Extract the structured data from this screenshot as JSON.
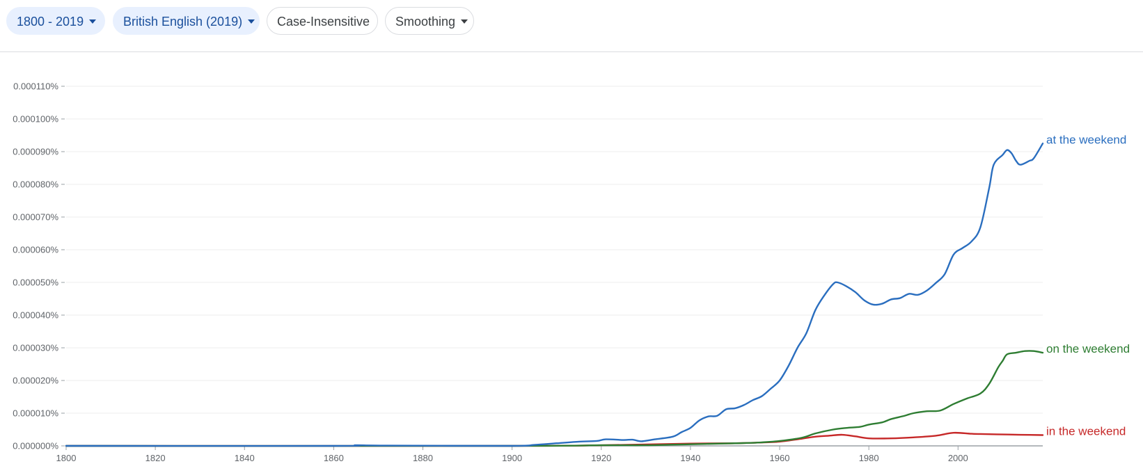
{
  "controls": {
    "year_range": "1800 - 2019",
    "corpus": "British English (2019)",
    "case": "Case-Insensitive",
    "smoothing": "Smoothing"
  },
  "colors": {
    "at": "#2a6ebf",
    "on": "#2e7d32",
    "in": "#c62828",
    "grid": "#eeeeee",
    "axis": "#9aa0a6"
  },
  "chart_data": {
    "type": "line",
    "xlim": [
      1800,
      2019
    ],
    "ylim": [
      0,
      0.00011
    ],
    "x_ticks": [
      1800,
      1820,
      1840,
      1860,
      1880,
      1900,
      1920,
      1940,
      1960,
      1980,
      2000
    ],
    "y_ticks": [
      0,
      1e-05,
      2e-05,
      3e-05,
      4e-05,
      5e-05,
      6e-05,
      7e-05,
      8e-05,
      9e-05,
      0.0001,
      0.00011
    ],
    "y_tick_labels": [
      "0.000000%",
      "0.000010%",
      "0.000020%",
      "0.000030%",
      "0.000040%",
      "0.000050%",
      "0.000060%",
      "0.000070%",
      "0.000080%",
      "0.000090%",
      "0.000100%",
      "0.000110%"
    ],
    "grid": true,
    "legend": "inline-right",
    "series": [
      {
        "name": "at the weekend",
        "points": [
          [
            1800,
            0
          ],
          [
            1860,
            0
          ],
          [
            1865,
            2e-07
          ],
          [
            1872,
            1e-07
          ],
          [
            1900,
            0
          ],
          [
            1905,
            3e-07
          ],
          [
            1910,
            8e-07
          ],
          [
            1915,
            1.3e-06
          ],
          [
            1919,
            1.5e-06
          ],
          [
            1921,
            2e-06
          ],
          [
            1925,
            1.8e-06
          ],
          [
            1927,
            1.9e-06
          ],
          [
            1929,
            1.4e-06
          ],
          [
            1932,
            2e-06
          ],
          [
            1936,
            2.8e-06
          ],
          [
            1938,
            4.2e-06
          ],
          [
            1940,
            5.5e-06
          ],
          [
            1942,
            7.8e-06
          ],
          [
            1944,
            9e-06
          ],
          [
            1946,
            9.2e-06
          ],
          [
            1948,
            1.12e-05
          ],
          [
            1950,
            1.15e-05
          ],
          [
            1952,
            1.25e-05
          ],
          [
            1954,
            1.4e-05
          ],
          [
            1956,
            1.52e-05
          ],
          [
            1958,
            1.75e-05
          ],
          [
            1960,
            2e-05
          ],
          [
            1962,
            2.45e-05
          ],
          [
            1964,
            3e-05
          ],
          [
            1966,
            3.45e-05
          ],
          [
            1968,
            4.15e-05
          ],
          [
            1970,
            4.6e-05
          ],
          [
            1972,
            4.95e-05
          ],
          [
            1973,
            5e-05
          ],
          [
            1975,
            4.88e-05
          ],
          [
            1977,
            4.7e-05
          ],
          [
            1979,
            4.45e-05
          ],
          [
            1981,
            4.32e-05
          ],
          [
            1983,
            4.35e-05
          ],
          [
            1985,
            4.48e-05
          ],
          [
            1987,
            4.52e-05
          ],
          [
            1989,
            4.65e-05
          ],
          [
            1991,
            4.62e-05
          ],
          [
            1993,
            4.75e-05
          ],
          [
            1995,
            4.98e-05
          ],
          [
            1997,
            5.25e-05
          ],
          [
            1999,
            5.85e-05
          ],
          [
            2001,
            6.05e-05
          ],
          [
            2003,
            6.25e-05
          ],
          [
            2005,
            6.68e-05
          ],
          [
            2007,
            7.9e-05
          ],
          [
            2008,
            8.6e-05
          ],
          [
            2010,
            8.9e-05
          ],
          [
            2011,
            9.05e-05
          ],
          [
            2012,
            8.95e-05
          ],
          [
            2013,
            8.72e-05
          ],
          [
            2014,
            8.6e-05
          ],
          [
            2016,
            8.72e-05
          ],
          [
            2017,
            8.8e-05
          ],
          [
            2019,
            9.25e-05
          ]
        ]
      },
      {
        "name": "on the weekend",
        "points": [
          [
            1800,
            0
          ],
          [
            1900,
            0
          ],
          [
            1920,
            2e-07
          ],
          [
            1930,
            2e-07
          ],
          [
            1940,
            5e-07
          ],
          [
            1950,
            8e-07
          ],
          [
            1955,
            1e-06
          ],
          [
            1960,
            1.5e-06
          ],
          [
            1965,
            2.5e-06
          ],
          [
            1968,
            3.8e-06
          ],
          [
            1972,
            5e-06
          ],
          [
            1975,
            5.5e-06
          ],
          [
            1978,
            5.8e-06
          ],
          [
            1980,
            6.5e-06
          ],
          [
            1983,
            7.2e-06
          ],
          [
            1985,
            8.2e-06
          ],
          [
            1988,
            9.2e-06
          ],
          [
            1990,
            1e-05
          ],
          [
            1993,
            1.06e-05
          ],
          [
            1996,
            1.08e-05
          ],
          [
            1999,
            1.28e-05
          ],
          [
            2002,
            1.45e-05
          ],
          [
            2005,
            1.6e-05
          ],
          [
            2007,
            1.9e-05
          ],
          [
            2009,
            2.4e-05
          ],
          [
            2010,
            2.6e-05
          ],
          [
            2011,
            2.8e-05
          ],
          [
            2013,
            2.85e-05
          ],
          [
            2015,
            2.9e-05
          ],
          [
            2017,
            2.9e-05
          ],
          [
            2019,
            2.85e-05
          ]
        ]
      },
      {
        "name": "in the weekend",
        "points": [
          [
            1800,
            0
          ],
          [
            1900,
            0
          ],
          [
            1920,
            2e-07
          ],
          [
            1940,
            7e-07
          ],
          [
            1950,
            8e-07
          ],
          [
            1955,
            1e-06
          ],
          [
            1960,
            1.3e-06
          ],
          [
            1965,
            2.2e-06
          ],
          [
            1968,
            2.8e-06
          ],
          [
            1971,
            3.1e-06
          ],
          [
            1974,
            3.4e-06
          ],
          [
            1977,
            2.9e-06
          ],
          [
            1980,
            2.3e-06
          ],
          [
            1985,
            2.3e-06
          ],
          [
            1990,
            2.6e-06
          ],
          [
            1995,
            3.1e-06
          ],
          [
            1999,
            4e-06
          ],
          [
            2003,
            3.7e-06
          ],
          [
            2006,
            3.6e-06
          ],
          [
            2010,
            3.5e-06
          ],
          [
            2014,
            3.4e-06
          ],
          [
            2019,
            3.3e-06
          ]
        ]
      }
    ]
  }
}
